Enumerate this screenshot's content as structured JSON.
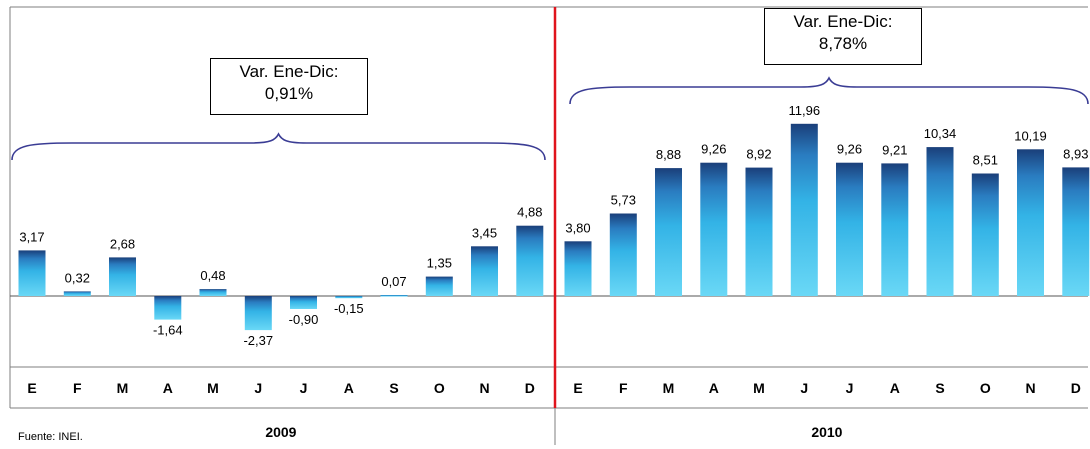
{
  "source_note": "Fuente: INEI.",
  "annotations": [
    {
      "line1": "Var. Ene-Dic:",
      "line2": "0,91%"
    },
    {
      "line1": "Var. Ene-Dic:",
      "line2": "8,78%"
    }
  ],
  "colors": {
    "bar_top": "#1a3f7a",
    "bar_bottom": "#5ad0f2",
    "divider": "#e0141c",
    "brace": "#3a3c94"
  },
  "chart_data": {
    "type": "bar",
    "groups": [
      {
        "year": "2009",
        "months": [
          "E",
          "F",
          "M",
          "A",
          "M",
          "J",
          "J",
          "A",
          "S",
          "O",
          "N",
          "D"
        ],
        "values": [
          3.17,
          0.32,
          2.68,
          -1.64,
          0.48,
          -2.37,
          -0.9,
          -0.15,
          0.07,
          1.35,
          3.45,
          4.88
        ],
        "labels": [
          "3,17",
          "0,32",
          "2,68",
          "-1,64",
          "0,48",
          "-2,37",
          "-0,90",
          "-0,15",
          "0,07",
          "1,35",
          "3,45",
          "4,88"
        ]
      },
      {
        "year": "2010",
        "months": [
          "E",
          "F",
          "M",
          "A",
          "M",
          "J",
          "J",
          "A",
          "S",
          "O",
          "N",
          "D"
        ],
        "values": [
          3.8,
          5.73,
          8.88,
          9.26,
          8.92,
          11.96,
          9.26,
          9.21,
          10.34,
          8.51,
          10.19,
          8.93
        ],
        "labels": [
          "3,80",
          "5,73",
          "8,88",
          "9,26",
          "8,92",
          "11,96",
          "9,26",
          "9,21",
          "10,34",
          "8,51",
          "10,19",
          "8,93"
        ]
      }
    ],
    "grid": false,
    "legend": "none"
  }
}
